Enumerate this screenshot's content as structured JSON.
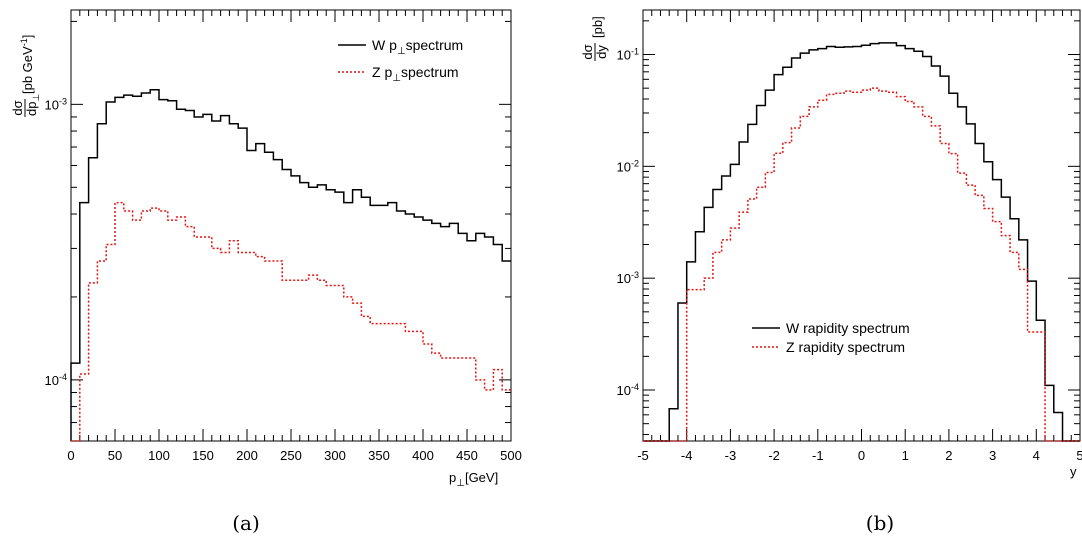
{
  "chart_data": [
    {
      "type": "line",
      "caption": "(a)",
      "xlabel": "p",
      "xlabel_sub": "⊥",
      "xlabel_unit": "[GeV]",
      "ylabel_num": "dσ",
      "ylabel_den": "dp",
      "ylabel_den_sub": "⊥",
      "ylabel_unit": "[pb GeV",
      "ylabel_unit_sup": "-1",
      "ylabel_unit_close": "]",
      "y_scale": "log",
      "xlim": [
        0,
        500
      ],
      "ylim": [
        6e-05,
        0.0022
      ],
      "x_ticks": [
        0,
        50,
        100,
        150,
        200,
        250,
        300,
        350,
        400,
        450,
        500
      ],
      "y_ticks": [
        {
          "value": 0.001,
          "label": "10",
          "exp": "-3"
        },
        {
          "value": 0.0001,
          "label": "10",
          "exp": "-4"
        }
      ],
      "legend": {
        "position": "top-right",
        "entries": [
          {
            "label_pre": "W p",
            "label_sub": "⊥",
            "label_post": "spectrum"
          },
          {
            "label_pre": "Z  p",
            "label_sub": "⊥",
            "label_post": "spectrum"
          }
        ]
      },
      "bin_edges": [
        0,
        10,
        20,
        30,
        40,
        50,
        60,
        70,
        80,
        90,
        100,
        110,
        120,
        130,
        140,
        150,
        160,
        170,
        180,
        190,
        200,
        210,
        220,
        230,
        240,
        250,
        260,
        270,
        280,
        290,
        300,
        310,
        320,
        330,
        340,
        350,
        360,
        370,
        380,
        390,
        400,
        410,
        420,
        430,
        440,
        450,
        460,
        470,
        480,
        490,
        500
      ],
      "series": [
        {
          "name": "W",
          "color": "#000000",
          "dash": "solid",
          "values": [
            0.000115,
            0.00044,
            0.00064,
            0.00085,
            0.00102,
            0.00106,
            0.00108,
            0.00107,
            0.0011,
            0.00113,
            0.00104,
            0.00103,
            0.00096,
            0.00095,
            0.0009,
            0.00092,
            0.00087,
            0.00091,
            0.00085,
            0.00082,
            0.00068,
            0.00072,
            0.00067,
            0.00063,
            0.00058,
            0.00055,
            0.00052,
            0.0005,
            0.00051,
            0.00049,
            0.00048,
            0.00044,
            0.00049,
            0.00046,
            0.00043,
            0.00043,
            0.00044,
            0.00041,
            0.0004,
            0.00039,
            0.00038,
            0.00037,
            0.00036,
            0.00037,
            0.00034,
            0.00032,
            0.00034,
            0.00033,
            0.00031,
            0.00027
          ]
        },
        {
          "name": "Z",
          "color": "#e8130e",
          "dash": "dotted",
          "values": [
            5.5e-05,
            0.000105,
            0.000225,
            0.00027,
            0.00031,
            0.00044,
            0.00041,
            0.00038,
            0.00041,
            0.00042,
            0.00041,
            0.00038,
            0.00039,
            0.00036,
            0.00033,
            0.00033,
            0.0003,
            0.00029,
            0.00032,
            0.00029,
            0.00029,
            0.00028,
            0.00027,
            0.00027,
            0.00023,
            0.00023,
            0.00023,
            0.00024,
            0.00023,
            0.00022,
            0.00022,
            0.0002,
            0.00019,
            0.00017,
            0.00016,
            0.00016,
            0.00016,
            0.00016,
            0.00015,
            0.00015,
            0.000135,
            0.000125,
            0.00012,
            0.00012,
            0.00012,
            0.00012,
            0.0001,
            9.2e-05,
            0.000109,
            9.2e-05
          ]
        }
      ]
    },
    {
      "type": "line",
      "caption": "(b)",
      "xlabel": "y",
      "ylabel_num": "dσ",
      "ylabel_den": "dy",
      "ylabel_unit": "[pb]",
      "y_scale": "log",
      "xlim": [
        -5,
        5
      ],
      "ylim": [
        3.5e-05,
        0.25
      ],
      "x_ticks": [
        {
          "value": -5,
          "label": "-5"
        },
        {
          "value": -4,
          "label": "-4"
        },
        {
          "value": -3,
          "label": "-3"
        },
        {
          "value": -2,
          "label": "-2"
        },
        {
          "value": -1,
          "label": "-1"
        },
        {
          "value": 0,
          "label": "0"
        },
        {
          "value": 1,
          "label": "1"
        },
        {
          "value": 2,
          "label": "2"
        },
        {
          "value": 3,
          "label": "3"
        },
        {
          "value": 4,
          "label": "4"
        },
        {
          "value": 5,
          "label": "5"
        }
      ],
      "y_ticks": [
        {
          "value": 0.1,
          "label": "10",
          "exp": "-1"
        },
        {
          "value": 0.01,
          "label": "10",
          "exp": "-2"
        },
        {
          "value": 0.001,
          "label": "10",
          "exp": "-3"
        },
        {
          "value": 0.0001,
          "label": "10",
          "exp": "-4"
        }
      ],
      "legend": {
        "position": "bottom-center",
        "entries": [
          {
            "label": "W rapidity  spectrum"
          },
          {
            "label": "Z  rapidity  spectrum"
          }
        ]
      },
      "bin_edges": [
        -5,
        -4.8,
        -4.6,
        -4.4,
        -4.2,
        -4,
        -3.8,
        -3.6,
        -3.4,
        -3.2,
        -3,
        -2.8,
        -2.6,
        -2.4,
        -2.2,
        -2,
        -1.8,
        -1.6,
        -1.4,
        -1.2,
        -1,
        -0.8,
        -0.6,
        -0.4,
        -0.2,
        0,
        0.2,
        0.4,
        0.6,
        0.8,
        1,
        1.2,
        1.4,
        1.6,
        1.8,
        2,
        2.2,
        2.4,
        2.6,
        2.8,
        3,
        3.2,
        3.4,
        3.6,
        3.8,
        4,
        4.2,
        4.4,
        4.6,
        4.8,
        5
      ],
      "series": [
        {
          "name": "W",
          "color": "#000000",
          "dash": "solid",
          "values": [
            3.5e-05,
            3.5e-05,
            3.5e-05,
            6.8e-05,
            0.0006,
            0.0014,
            0.0026,
            0.0043,
            0.0062,
            0.0082,
            0.0104,
            0.0165,
            0.0237,
            0.035,
            0.048,
            0.066,
            0.077,
            0.093,
            0.103,
            0.11,
            0.113,
            0.118,
            0.116,
            0.117,
            0.118,
            0.121,
            0.125,
            0.127,
            0.127,
            0.12,
            0.113,
            0.107,
            0.096,
            0.079,
            0.064,
            0.045,
            0.034,
            0.024,
            0.016,
            0.011,
            0.0076,
            0.0053,
            0.0034,
            0.0022,
            0.00094,
            0.00042,
            0.00011,
            6.3e-05,
            3.5e-05,
            3.5e-05
          ]
        },
        {
          "name": "Z",
          "color": "#e8130e",
          "dash": "dotted",
          "values": [
            3.5e-05,
            3.5e-05,
            3.5e-05,
            3.5e-05,
            3.5e-05,
            0.00079,
            0.00079,
            0.001,
            0.0017,
            0.0022,
            0.0028,
            0.0039,
            0.0051,
            0.0065,
            0.0088,
            0.0131,
            0.0163,
            0.022,
            0.028,
            0.034,
            0.039,
            0.044,
            0.045,
            0.047,
            0.046,
            0.048,
            0.05,
            0.047,
            0.046,
            0.042,
            0.038,
            0.034,
            0.028,
            0.023,
            0.016,
            0.013,
            0.0087,
            0.0068,
            0.0055,
            0.0042,
            0.0032,
            0.0024,
            0.0017,
            0.0012,
            0.00033,
            0.00033,
            3.5e-05,
            3.5e-05,
            3.5e-05,
            3.5e-05
          ]
        }
      ]
    }
  ]
}
